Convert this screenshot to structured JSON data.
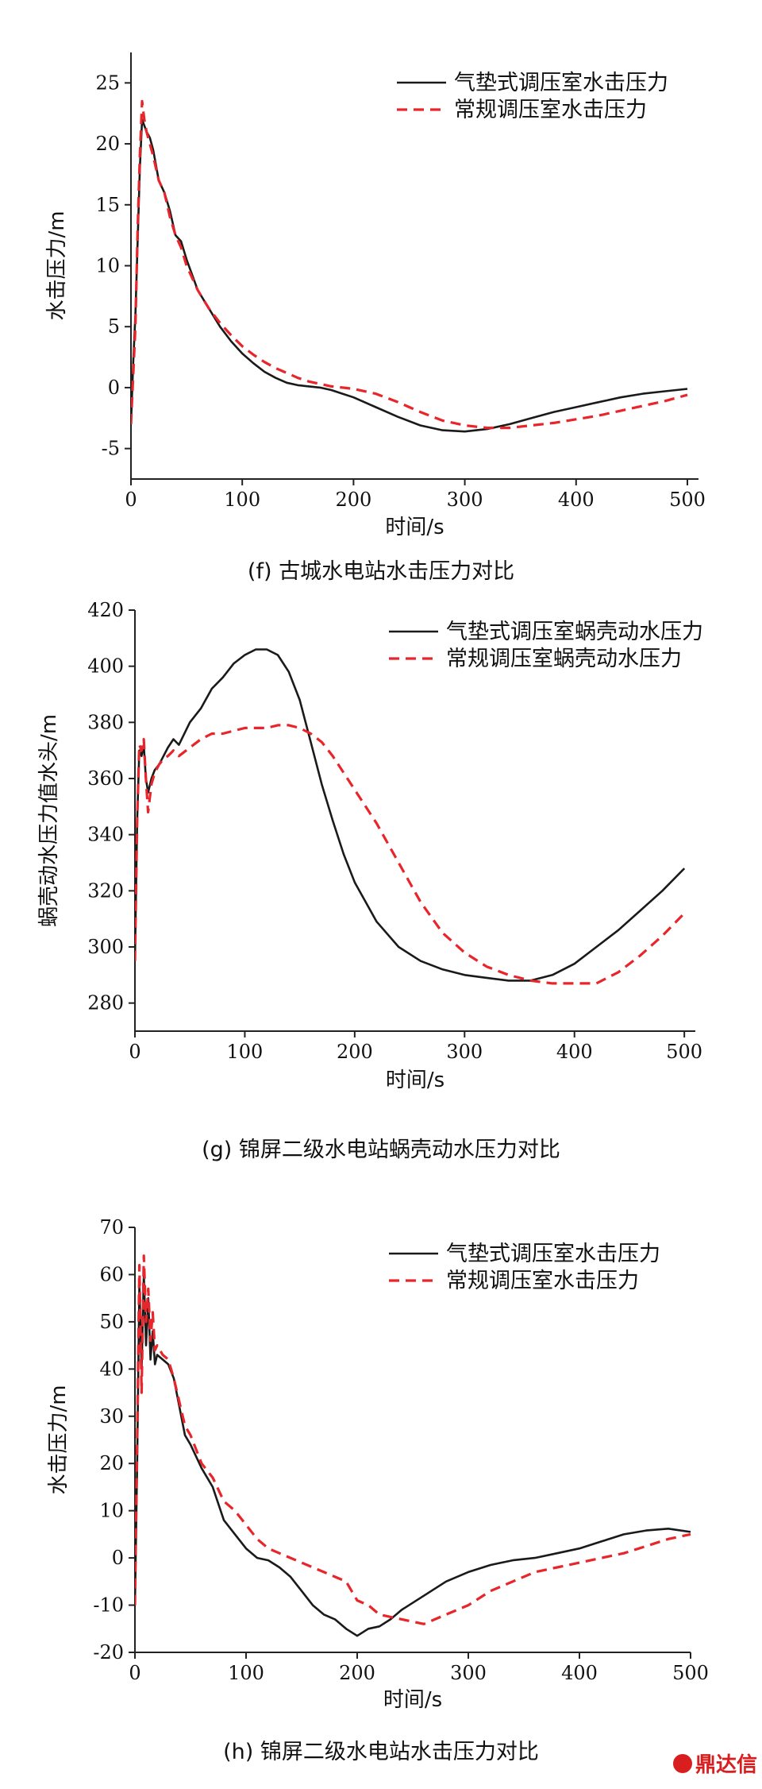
{
  "chart_data": [
    {
      "type": "line",
      "caption": "(f)   古城水电站水击压力对比",
      "xlabel": "时间/s",
      "ylabel": "水击压力/m",
      "xlim": [
        0,
        510
      ],
      "ylim": [
        -7.5,
        27.5
      ],
      "xticks": [
        0,
        100,
        200,
        300,
        400,
        500
      ],
      "yticks": [
        -5,
        0,
        5,
        10,
        15,
        20,
        25
      ],
      "legend_position": "top-right",
      "series": [
        {
          "name": "气垫式调压室水击压力",
          "color": "#1a1a1a",
          "style": "solid",
          "x": [
            0,
            2,
            4,
            6,
            8,
            10,
            12,
            14,
            17,
            20,
            25,
            30,
            35,
            40,
            45,
            50,
            60,
            70,
            80,
            90,
            100,
            110,
            120,
            130,
            140,
            150,
            160,
            170,
            180,
            190,
            200,
            220,
            240,
            260,
            280,
            300,
            320,
            340,
            360,
            380,
            400,
            420,
            440,
            460,
            480,
            500
          ],
          "y": [
            -3,
            2,
            6,
            12,
            18,
            22,
            21.5,
            21,
            20.5,
            19.5,
            17,
            16,
            14.5,
            12.5,
            12,
            10.5,
            8,
            6.5,
            5,
            3.8,
            2.8,
            2,
            1.3,
            0.8,
            0.4,
            0.2,
            0.1,
            0,
            -0.2,
            -0.5,
            -0.8,
            -1.6,
            -2.4,
            -3.1,
            -3.5,
            -3.6,
            -3.4,
            -3.0,
            -2.5,
            -2.0,
            -1.6,
            -1.2,
            -0.8,
            -0.5,
            -0.3,
            -0.1
          ]
        },
        {
          "name": "常规调压室水击压力",
          "color": "#e8252a",
          "style": "dashed",
          "x": [
            0,
            2,
            4,
            6,
            8,
            10,
            12,
            14,
            17,
            20,
            25,
            30,
            35,
            40,
            45,
            50,
            60,
            70,
            80,
            90,
            100,
            110,
            120,
            130,
            140,
            150,
            160,
            170,
            180,
            190,
            200,
            220,
            240,
            260,
            280,
            300,
            320,
            340,
            360,
            380,
            400,
            420,
            440,
            460,
            480,
            500
          ],
          "y": [
            -3,
            1,
            5,
            13,
            19,
            23.5,
            22,
            21,
            20,
            19,
            17,
            16,
            14,
            12.5,
            11.5,
            10,
            8,
            6.5,
            5.3,
            4.3,
            3.4,
            2.7,
            2.1,
            1.6,
            1.2,
            0.8,
            0.5,
            0.3,
            0.1,
            0,
            -0.1,
            -0.5,
            -1.2,
            -2.0,
            -2.7,
            -3.1,
            -3.3,
            -3.3,
            -3.1,
            -2.9,
            -2.6,
            -2.3,
            -1.9,
            -1.5,
            -1.1,
            -0.6
          ]
        }
      ]
    },
    {
      "type": "line",
      "caption": "(g)   锦屏二级水电站蜗壳动水压力对比",
      "xlabel": "时间/s",
      "ylabel": "蜗壳动水压力值水头/m",
      "xlim": [
        0,
        510
      ],
      "ylim": [
        270,
        420
      ],
      "xticks": [
        0,
        100,
        200,
        300,
        400,
        500
      ],
      "yticks": [
        280,
        300,
        320,
        340,
        360,
        380,
        400,
        420
      ],
      "legend_position": "top-right",
      "series": [
        {
          "name": "气垫式调压室蜗壳动水压力",
          "color": "#1a1a1a",
          "style": "solid",
          "x": [
            0,
            2,
            4,
            6,
            8,
            10,
            12,
            15,
            18,
            22,
            26,
            30,
            35,
            40,
            50,
            60,
            70,
            80,
            90,
            100,
            110,
            120,
            130,
            140,
            150,
            160,
            170,
            180,
            190,
            200,
            220,
            240,
            260,
            280,
            300,
            320,
            340,
            360,
            380,
            400,
            420,
            440,
            460,
            480,
            500
          ],
          "y": [
            295,
            345,
            370,
            368,
            372,
            360,
            355,
            360,
            363,
            365,
            368,
            371,
            374,
            372,
            380,
            385,
            392,
            396,
            401,
            404,
            406,
            406,
            404,
            398,
            388,
            373,
            358,
            345,
            333,
            323,
            309,
            300,
            295,
            292,
            290,
            289,
            288,
            288,
            290,
            294,
            300,
            306,
            313,
            320,
            328
          ]
        },
        {
          "name": "常规调压室蜗壳动水压力",
          "color": "#e8252a",
          "style": "dashed",
          "x": [
            0,
            2,
            4,
            6,
            8,
            10,
            12,
            15,
            18,
            22,
            26,
            30,
            35,
            40,
            50,
            60,
            70,
            80,
            90,
            100,
            110,
            120,
            130,
            140,
            150,
            160,
            170,
            180,
            190,
            200,
            220,
            240,
            260,
            280,
            300,
            320,
            340,
            360,
            380,
            400,
            420,
            440,
            460,
            480,
            500
          ],
          "y": [
            295,
            345,
            372,
            370,
            374,
            360,
            348,
            358,
            362,
            365,
            367,
            368,
            370,
            368,
            371,
            374,
            376,
            376,
            377,
            378,
            378,
            378,
            379,
            379,
            378,
            376,
            373,
            368,
            362,
            356,
            344,
            330,
            316,
            305,
            298,
            293,
            290,
            288,
            287,
            287,
            287,
            291,
            297,
            304,
            312
          ]
        }
      ]
    },
    {
      "type": "line",
      "caption": "(h)   锦屏二级水电站水击压力对比",
      "xlabel": "时间/s",
      "ylabel": "水击压力/m",
      "xlim": [
        0,
        500
      ],
      "ylim": [
        -20,
        70
      ],
      "xticks": [
        0,
        100,
        200,
        300,
        400,
        500
      ],
      "yticks": [
        -20,
        -10,
        0,
        10,
        20,
        30,
        40,
        50,
        60,
        70
      ],
      "legend_position": "top-right",
      "series": [
        {
          "name": "气垫式调压室水击压力",
          "color": "#1a1a1a",
          "style": "solid",
          "x": [
            0,
            2,
            4,
            6,
            8,
            10,
            12,
            14,
            16,
            18,
            20,
            25,
            30,
            35,
            40,
            45,
            50,
            60,
            70,
            80,
            90,
            100,
            110,
            120,
            130,
            140,
            150,
            160,
            170,
            180,
            190,
            200,
            210,
            220,
            230,
            240,
            260,
            280,
            300,
            320,
            340,
            360,
            380,
            400,
            420,
            440,
            460,
            480,
            500
          ],
          "y": [
            -10,
            20,
            58,
            40,
            60,
            45,
            55,
            42,
            48,
            41,
            43,
            42,
            41,
            38,
            32,
            26,
            24,
            19,
            15,
            8,
            5,
            2,
            0,
            -0.5,
            -2,
            -4,
            -7,
            -10,
            -12,
            -13,
            -15,
            -16.5,
            -15,
            -14.5,
            -13,
            -11,
            -8,
            -5,
            -3,
            -1.5,
            -0.5,
            0,
            1,
            2,
            3.5,
            5,
            5.8,
            6.2,
            5.5
          ]
        },
        {
          "name": "常规调压室水击压力",
          "color": "#e8252a",
          "style": "dashed",
          "x": [
            0,
            2,
            4,
            6,
            8,
            10,
            12,
            14,
            16,
            18,
            20,
            25,
            30,
            35,
            40,
            45,
            50,
            60,
            70,
            80,
            90,
            100,
            110,
            120,
            130,
            140,
            150,
            160,
            170,
            180,
            190,
            200,
            210,
            220,
            230,
            240,
            260,
            280,
            300,
            320,
            340,
            360,
            380,
            400,
            420,
            440,
            460,
            480,
            500
          ],
          "y": [
            -10,
            25,
            62,
            35,
            64,
            50,
            57,
            46,
            52,
            44,
            45,
            43,
            42,
            38,
            33,
            28,
            26,
            20,
            17,
            12,
            10,
            7,
            4,
            2,
            1,
            0,
            -1,
            -2,
            -3,
            -4,
            -5,
            -9,
            -10,
            -12,
            -12.5,
            -13,
            -14,
            -12,
            -10,
            -7,
            -5,
            -3,
            -2,
            -1,
            0,
            1,
            2.5,
            4,
            5
          ]
        }
      ]
    }
  ],
  "watermark": {
    "text": "鼎达信",
    "color": "#d81e1e"
  }
}
